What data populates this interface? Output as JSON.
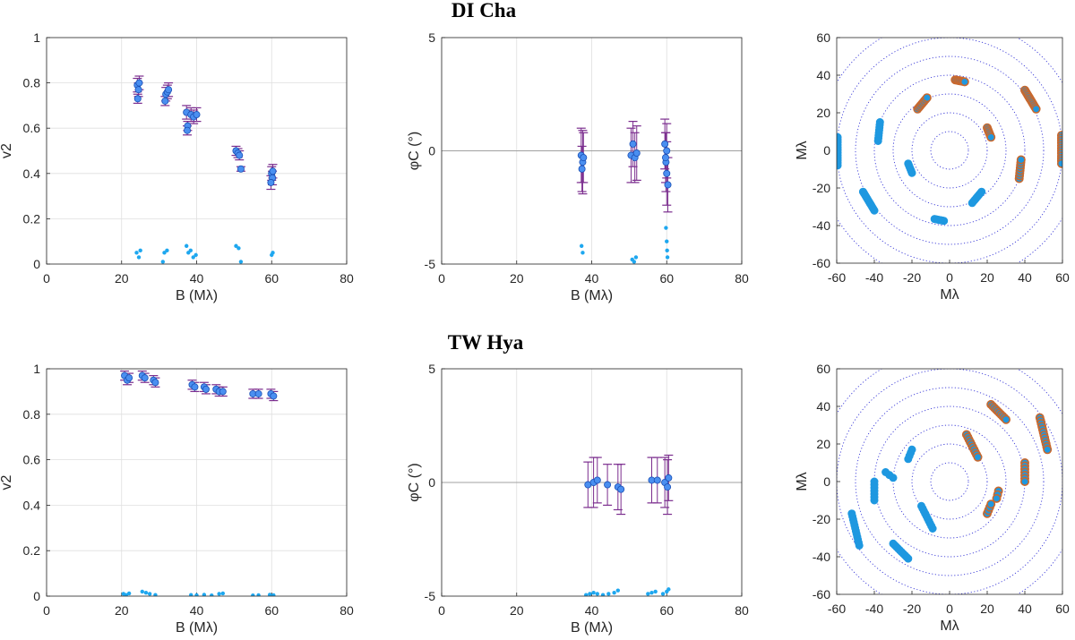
{
  "figure": {
    "titles": [
      "DI Cha",
      "TW Hya"
    ]
  },
  "colors": {
    "marker_fill": "#4a8ff0",
    "marker_edge": "#1a4fb5",
    "errorbar": "#7b2d8e",
    "residual": "#1ea7ef",
    "uv_fill": "#1e98e0",
    "uv_edge": "#c8682e",
    "ring": "#3a3ad8",
    "zero_line": "#a0a0a0"
  },
  "chart_data": [
    {
      "id": "dicha_v2",
      "type": "scatter",
      "group": "DI Cha",
      "xlabel": "B (Mλ)",
      "ylabel": "v2",
      "xlim": [
        0,
        80
      ],
      "ylim": [
        0,
        1
      ],
      "xticks": [
        "0",
        "20",
        "40",
        "60",
        "80"
      ],
      "yticks": [
        "0",
        "0.2",
        "0.4",
        "0.6",
        "0.8",
        "1"
      ],
      "series": [
        {
          "name": "data",
          "x": [
            24.2,
            24.5,
            24.7,
            24.3,
            31.8,
            32.2,
            31.6,
            32.5,
            37.3,
            37.6,
            37.5,
            38.5,
            39.2,
            40.0,
            50.5,
            51.0,
            51.4,
            51.8,
            60.0,
            60.2,
            59.8,
            60.3
          ],
          "y": [
            0.79,
            0.77,
            0.8,
            0.73,
            0.75,
            0.76,
            0.72,
            0.77,
            0.67,
            0.61,
            0.59,
            0.66,
            0.65,
            0.66,
            0.5,
            0.49,
            0.48,
            0.42,
            0.4,
            0.38,
            0.36,
            0.41
          ],
          "err": [
            0.03,
            0.03,
            0.03,
            0.02,
            0.03,
            0.03,
            0.02,
            0.03,
            0.03,
            0.02,
            0.02,
            0.03,
            0.03,
            0.03,
            0.02,
            0.02,
            0.02,
            0.01,
            0.03,
            0.03,
            0.03,
            0.03
          ]
        },
        {
          "name": "residual",
          "x": [
            24.0,
            24.6,
            25.0,
            31.4,
            32.1,
            31.0,
            37.3,
            37.8,
            38.4,
            39.1,
            39.8,
            50.5,
            51.2,
            51.8,
            60.0,
            60.3
          ],
          "y": [
            0.05,
            0.03,
            0.06,
            0.05,
            0.06,
            0.01,
            0.08,
            0.05,
            0.06,
            0.03,
            0.04,
            0.08,
            0.07,
            0.01,
            0.04,
            0.05
          ]
        }
      ]
    },
    {
      "id": "dicha_cp",
      "type": "scatter",
      "group": "DI Cha",
      "xlabel": "B (Mλ)",
      "ylabel": "φC (°)",
      "xlim": [
        0,
        80
      ],
      "ylim": [
        -5,
        5
      ],
      "xticks": [
        "0",
        "20",
        "40",
        "60",
        "80"
      ],
      "yticks": [
        "-5",
        "0",
        "5"
      ],
      "series": [
        {
          "name": "data",
          "x": [
            37.2,
            37.6,
            37.4,
            37.8,
            50.5,
            51.0,
            51.5,
            52.0,
            59.5,
            59.8,
            60.0,
            60.3,
            60.0,
            59.7
          ],
          "y": [
            -0.2,
            -0.5,
            -0.8,
            -0.3,
            -0.2,
            0.3,
            -0.3,
            -0.1,
            0.3,
            -0.5,
            -1.0,
            -1.5,
            0.0,
            -0.3
          ],
          "err": [
            1.2,
            1.4,
            1.0,
            1.1,
            1.2,
            1.0,
            1.1,
            1.2,
            1.1,
            1.3,
            1.4,
            1.2,
            1.2,
            1.1
          ]
        },
        {
          "name": "residual",
          "x": [
            37.3,
            37.6,
            50.8,
            51.3,
            51.8,
            59.8,
            60.0,
            60.1,
            60.2
          ],
          "y": [
            -4.2,
            -4.5,
            -4.8,
            -4.9,
            -4.7,
            -3.4,
            -4.0,
            -4.4,
            -4.7
          ]
        }
      ]
    },
    {
      "id": "dicha_uv",
      "type": "scatter",
      "group": "DI Cha",
      "xlabel": "Mλ",
      "ylabel": "Mλ",
      "xlim": [
        -60,
        60
      ],
      "ylim": [
        -60,
        60
      ],
      "xticks": [
        "-60",
        "-40",
        "-20",
        "0",
        "20",
        "40",
        "60"
      ],
      "yticks": [
        "-60",
        "-40",
        "-20",
        "0",
        "20",
        "40",
        "60"
      ],
      "rings": [
        10,
        20,
        30,
        40,
        50,
        60,
        70
      ],
      "tracks": [
        {
          "from": [
            3,
            37.5
          ],
          "to": [
            8,
            36.5
          ],
          "n": 7,
          "edge": true
        },
        {
          "from": [
            -3,
            -37.5
          ],
          "to": [
            -8,
            -36.5
          ],
          "n": 7,
          "edge": false
        },
        {
          "from": [
            40,
            32
          ],
          "to": [
            46,
            22
          ],
          "n": 12,
          "edge": true
        },
        {
          "from": [
            -40,
            -32
          ],
          "to": [
            -46,
            -22
          ],
          "n": 12,
          "edge": false
        },
        {
          "from": [
            -17,
            22
          ],
          "to": [
            -12,
            28
          ],
          "n": 8,
          "edge": true
        },
        {
          "from": [
            17,
            -22
          ],
          "to": [
            12,
            -28
          ],
          "n": 8,
          "edge": false
        },
        {
          "from": [
            20,
            12
          ],
          "to": [
            22,
            7
          ],
          "n": 6,
          "edge": true
        },
        {
          "from": [
            -20,
            -12
          ],
          "to": [
            -22,
            -7
          ],
          "n": 6,
          "edge": false
        },
        {
          "from": [
            -37,
            15
          ],
          "to": [
            -38,
            5
          ],
          "n": 8,
          "edge": false
        },
        {
          "from": [
            37,
            -15
          ],
          "to": [
            38,
            -5
          ],
          "n": 8,
          "edge": true
        },
        {
          "from": [
            59.5,
            8
          ],
          "to": [
            59.5,
            -7
          ],
          "n": 12,
          "edge": true
        },
        {
          "from": [
            -59.5,
            -8
          ],
          "to": [
            -59.5,
            7
          ],
          "n": 12,
          "edge": false
        }
      ]
    },
    {
      "id": "twhya_v2",
      "type": "scatter",
      "group": "TW Hya",
      "xlabel": "B (Mλ)",
      "ylabel": "v2",
      "xlim": [
        0,
        80
      ],
      "ylim": [
        0,
        1
      ],
      "xticks": [
        "0",
        "20",
        "40",
        "60",
        "80"
      ],
      "yticks": [
        "0",
        "0.2",
        "0.4",
        "0.6",
        "0.8",
        "1"
      ],
      "series": [
        {
          "name": "data",
          "x": [
            20.8,
            21.5,
            22.0,
            25.5,
            26.2,
            28.5,
            29.0,
            38.8,
            39.5,
            42.0,
            42.5,
            45.2,
            46.0,
            47.0,
            55.0,
            56.5,
            59.8,
            60.5
          ],
          "y": [
            0.97,
            0.95,
            0.96,
            0.97,
            0.96,
            0.95,
            0.94,
            0.93,
            0.92,
            0.92,
            0.91,
            0.91,
            0.9,
            0.9,
            0.89,
            0.89,
            0.89,
            0.88
          ],
          "err": [
            0.02,
            0.02,
            0.02,
            0.02,
            0.02,
            0.02,
            0.02,
            0.02,
            0.02,
            0.02,
            0.02,
            0.02,
            0.02,
            0.02,
            0.02,
            0.02,
            0.02,
            0.02
          ]
        },
        {
          "name": "residual",
          "x": [
            20.5,
            21.2,
            22.0,
            25.5,
            26.5,
            27.5,
            29.0,
            38.5,
            40.0,
            42.0,
            44.0,
            46.0,
            47.0,
            55.0,
            56.5,
            59.5,
            60.5
          ],
          "y": [
            0.01,
            0.005,
            0.012,
            0.02,
            0.015,
            0.01,
            0.005,
            0.005,
            0.004,
            0.006,
            0.003,
            0.01,
            0.012,
            0.003,
            0.004,
            0.006,
            0.004
          ]
        }
      ]
    },
    {
      "id": "twhya_cp",
      "type": "scatter",
      "group": "TW Hya",
      "xlabel": "B (Mλ)",
      "ylabel": "φC (°)",
      "xlim": [
        0,
        80
      ],
      "ylim": [
        -5,
        5
      ],
      "xticks": [
        "0",
        "20",
        "40",
        "60",
        "80"
      ],
      "yticks": [
        "-5",
        "0",
        "5"
      ],
      "series": [
        {
          "name": "data",
          "x": [
            39.0,
            40.5,
            41.5,
            44.2,
            47.0,
            47.8,
            56.0,
            57.5,
            59.5,
            60.2,
            60.5
          ],
          "y": [
            -0.1,
            0.0,
            0.1,
            -0.1,
            -0.2,
            -0.3,
            0.1,
            0.1,
            0.0,
            -0.2,
            0.2
          ],
          "err": [
            1.0,
            1.1,
            1.0,
            0.9,
            1.0,
            1.1,
            1.0,
            1.0,
            1.1,
            1.2,
            1.0
          ]
        },
        {
          "name": "residual",
          "x": [
            38.5,
            39.5,
            40.5,
            41.5,
            43.0,
            44.5,
            46.0,
            47.0,
            55.0,
            56.0,
            57.0,
            59.0,
            60.0,
            60.5
          ],
          "y": [
            -4.95,
            -4.9,
            -4.85,
            -4.9,
            -4.95,
            -4.9,
            -4.85,
            -4.75,
            -4.9,
            -4.85,
            -4.8,
            -4.9,
            -4.8,
            -4.7
          ]
        }
      ]
    },
    {
      "id": "twhya_uv",
      "type": "scatter",
      "group": "TW Hya",
      "xlabel": "Mλ",
      "ylabel": "Mλ",
      "xlim": [
        -60,
        60
      ],
      "ylim": [
        -60,
        60
      ],
      "xticks": [
        "-60",
        "-40",
        "-20",
        "0",
        "20",
        "40",
        "60"
      ],
      "yticks": [
        "-60",
        "-40",
        "-20",
        "0",
        "20",
        "40",
        "60"
      ],
      "rings": [
        10,
        20,
        30,
        40,
        50,
        60,
        70
      ],
      "tracks": [
        {
          "from": [
            22,
            41
          ],
          "to": [
            30,
            33
          ],
          "n": 10,
          "edge": true
        },
        {
          "from": [
            -22,
            -41
          ],
          "to": [
            -30,
            -33
          ],
          "n": 10,
          "edge": false
        },
        {
          "from": [
            48,
            34
          ],
          "to": [
            52,
            17
          ],
          "n": 12,
          "edge": true
        },
        {
          "from": [
            -48,
            -34
          ],
          "to": [
            -52,
            -17
          ],
          "n": 12,
          "edge": false
        },
        {
          "from": [
            9,
            25
          ],
          "to": [
            15,
            13
          ],
          "n": 10,
          "edge": true
        },
        {
          "from": [
            -9,
            -25
          ],
          "to": [
            -15,
            -13
          ],
          "n": 10,
          "edge": false
        },
        {
          "from": [
            40,
            10
          ],
          "to": [
            40,
            0
          ],
          "n": 7,
          "edge": true
        },
        {
          "from": [
            -40,
            -10
          ],
          "to": [
            -40,
            0
          ],
          "n": 7,
          "edge": false
        },
        {
          "from": [
            -20,
            17
          ],
          "to": [
            -22,
            12
          ],
          "n": 4,
          "edge": false
        },
        {
          "from": [
            20,
            -17
          ],
          "to": [
            22,
            -12
          ],
          "n": 4,
          "edge": true
        },
        {
          "from": [
            -30,
            2
          ],
          "to": [
            -34,
            5
          ],
          "n": 3,
          "edge": false
        },
        {
          "from": [
            26,
            -5
          ],
          "to": [
            25,
            -9
          ],
          "n": 3,
          "edge": true
        }
      ]
    }
  ]
}
